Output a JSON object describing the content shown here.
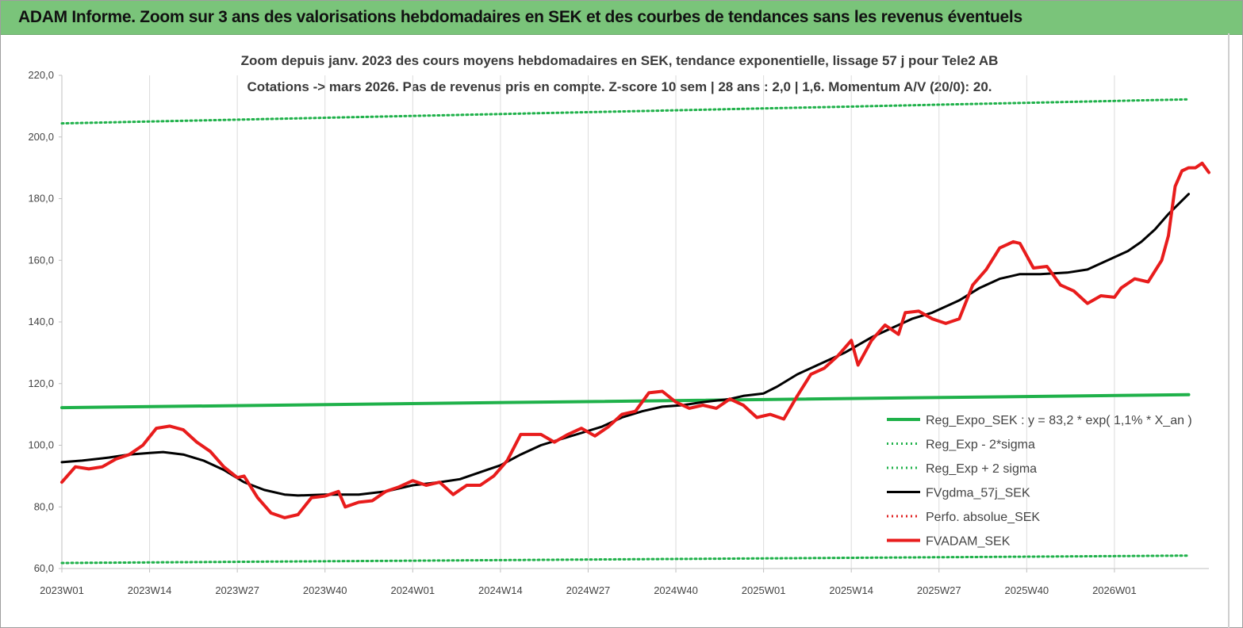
{
  "banner": {
    "title": "ADAM Informe. Zoom sur 3 ans des valorisations hebdomadaires en SEK et des courbes de tendances sans les revenus éventuels",
    "color": "#7ac47a"
  },
  "chart_data": {
    "type": "line",
    "title": "Zoom depuis janv. 2023 des cours moyens hebdomadaires en SEK, tendance exponentielle, lissage 57 j pour Tele2 AB",
    "subtitle": "Cotations -> mars 2026. Pas de revenus pris en compte. Z-score 10 sem  | 28 ans : 2,0  | 1,6. Momentum A/V (20/0): 20.",
    "ylim": [
      60,
      220
    ],
    "y_ticks": [
      "60,0",
      "80,0",
      "100,0",
      "120,0",
      "140,0",
      "160,0",
      "180,0",
      "200,0",
      "220,0"
    ],
    "x_ticks": [
      "2023W01",
      "2023W14",
      "2023W27",
      "2023W40",
      "2024W01",
      "2024W14",
      "2024W27",
      "2024W40",
      "2025W01",
      "2025W14",
      "2025W27",
      "2025W40",
      "2026W01"
    ],
    "grid": "vertical",
    "legend_position": "right",
    "series": [
      {
        "name": "Reg_Expo_SEK : y = 83,2 * exp( 1,1% *  X_an )",
        "color": "#1fb14a",
        "style": "solid-thick",
        "points": [
          [
            "2023W01",
            112.2
          ],
          [
            "2026W12",
            116.4
          ]
        ]
      },
      {
        "name": "Reg_Exp - 2*sigma",
        "color": "#1fb14a",
        "style": "dotted",
        "points": [
          [
            "2023W01",
            61.8
          ],
          [
            "2026W12",
            64.2
          ]
        ]
      },
      {
        "name": "Reg_Exp + 2 sigma",
        "color": "#1fb14a",
        "style": "dotted",
        "points": [
          [
            "2023W01",
            204.4
          ],
          [
            "2026W12",
            212.2
          ]
        ]
      },
      {
        "name": "FVgdma_57j_SEK",
        "color": "#000000",
        "style": "solid",
        "points": [
          [
            "2023W01",
            94.5
          ],
          [
            "2023W04",
            95
          ],
          [
            "2023W08",
            96
          ],
          [
            "2023W11",
            97
          ],
          [
            "2023W14",
            97.5
          ],
          [
            "2023W16",
            97.8
          ],
          [
            "2023W19",
            97
          ],
          [
            "2023W22",
            95
          ],
          [
            "2023W25",
            92
          ],
          [
            "2023W28",
            88
          ],
          [
            "2023W31",
            85.5
          ],
          [
            "2023W34",
            84
          ],
          [
            "2023W36",
            83.7
          ],
          [
            "2023W40",
            84
          ],
          [
            "2023W45",
            84
          ],
          [
            "2023W49",
            85
          ],
          [
            "2024W01",
            87
          ],
          [
            "2024W05",
            88
          ],
          [
            "2024W08",
            89
          ],
          [
            "2024W12",
            92
          ],
          [
            "2024W14",
            93.5
          ],
          [
            "2024W17",
            97
          ],
          [
            "2024W20",
            100
          ],
          [
            "2024W23",
            102
          ],
          [
            "2024W26",
            104
          ],
          [
            "2024W29",
            106
          ],
          [
            "2024W32",
            109
          ],
          [
            "2024W35",
            111
          ],
          [
            "2024W38",
            112.5
          ],
          [
            "2024W41",
            113
          ],
          [
            "2024W44",
            114
          ],
          [
            "2024W48",
            115
          ],
          [
            "2024W50",
            116
          ],
          [
            "2025W01",
            116.8
          ],
          [
            "2025W03",
            119
          ],
          [
            "2025W06",
            123
          ],
          [
            "2025W09",
            126
          ],
          [
            "2025W13",
            130
          ],
          [
            "2025W17",
            135
          ],
          [
            "2025W20",
            138
          ],
          [
            "2025W23",
            141
          ],
          [
            "2025W26",
            143
          ],
          [
            "2025W30",
            147
          ],
          [
            "2025W33",
            151
          ],
          [
            "2025W36",
            154
          ],
          [
            "2025W39",
            155.5
          ],
          [
            "2025W42",
            155.5
          ],
          [
            "2025W46",
            156
          ],
          [
            "2025W49",
            157
          ],
          [
            "2025W52",
            160
          ],
          [
            "2026W01",
            161
          ],
          [
            "2026W03",
            163
          ],
          [
            "2026W05",
            166
          ],
          [
            "2026W07",
            170
          ],
          [
            "2026W09",
            175
          ],
          [
            "2026W12",
            181.5
          ]
        ]
      },
      {
        "name": "Perfo. absolue_SEK",
        "color": "#e02020",
        "style": "dotted",
        "points": []
      },
      {
        "name": "FVADAM_SEK",
        "color": "#e81c1c",
        "style": "solid-thick",
        "points": [
          [
            "2023W01",
            88
          ],
          [
            "2023W03",
            93
          ],
          [
            "2023W05",
            92.3
          ],
          [
            "2023W07",
            93
          ],
          [
            "2023W09",
            95.5
          ],
          [
            "2023W11",
            97
          ],
          [
            "2023W13",
            100
          ],
          [
            "2023W15",
            105.5
          ],
          [
            "2023W17",
            106.2
          ],
          [
            "2023W19",
            105
          ],
          [
            "2023W21",
            101
          ],
          [
            "2023W23",
            98
          ],
          [
            "2023W25",
            93
          ],
          [
            "2023W27",
            89.5
          ],
          [
            "2023W28",
            90
          ],
          [
            "2023W30",
            83
          ],
          [
            "2023W32",
            78
          ],
          [
            "2023W34",
            76.5
          ],
          [
            "2023W36",
            77.5
          ],
          [
            "2023W38",
            83
          ],
          [
            "2023W40",
            83.5
          ],
          [
            "2023W42",
            85
          ],
          [
            "2023W43",
            80
          ],
          [
            "2023W45",
            81.5
          ],
          [
            "2023W47",
            82
          ],
          [
            "2023W49",
            85
          ],
          [
            "2023W51",
            86.5
          ],
          [
            "2024W01",
            88.5
          ],
          [
            "2024W03",
            87
          ],
          [
            "2024W05",
            88
          ],
          [
            "2024W07",
            84
          ],
          [
            "2024W09",
            87
          ],
          [
            "2024W11",
            87
          ],
          [
            "2024W13",
            90
          ],
          [
            "2024W15",
            95
          ],
          [
            "2024W17",
            103.5
          ],
          [
            "2024W20",
            103.5
          ],
          [
            "2024W22",
            101
          ],
          [
            "2024W24",
            103.5
          ],
          [
            "2024W26",
            105.5
          ],
          [
            "2024W28",
            103
          ],
          [
            "2024W30",
            106
          ],
          [
            "2024W32",
            110
          ],
          [
            "2024W34",
            111
          ],
          [
            "2024W36",
            117
          ],
          [
            "2024W38",
            117.5
          ],
          [
            "2024W40",
            114
          ],
          [
            "2024W42",
            112
          ],
          [
            "2024W44",
            113
          ],
          [
            "2024W46",
            112
          ],
          [
            "2024W48",
            115
          ],
          [
            "2024W50",
            113
          ],
          [
            "2024W52",
            109
          ],
          [
            "2025W02",
            110
          ],
          [
            "2025W04",
            108.5
          ],
          [
            "2025W06",
            116
          ],
          [
            "2025W08",
            123
          ],
          [
            "2025W10",
            125
          ],
          [
            "2025W12",
            129
          ],
          [
            "2025W14",
            134
          ],
          [
            "2025W15",
            126
          ],
          [
            "2025W17",
            134
          ],
          [
            "2025W19",
            139
          ],
          [
            "2025W21",
            136
          ],
          [
            "2025W22",
            143
          ],
          [
            "2025W24",
            143.5
          ],
          [
            "2025W26",
            141
          ],
          [
            "2025W28",
            139.5
          ],
          [
            "2025W30",
            141
          ],
          [
            "2025W32",
            152
          ],
          [
            "2025W34",
            157
          ],
          [
            "2025W36",
            164
          ],
          [
            "2025W38",
            166
          ],
          [
            "2025W39",
            165.5
          ],
          [
            "2025W41",
            157.5
          ],
          [
            "2025W43",
            158
          ],
          [
            "2025W45",
            152
          ],
          [
            "2025W47",
            150
          ],
          [
            "2025W49",
            146
          ],
          [
            "2025W51",
            148.5
          ],
          [
            "2026W01",
            148
          ],
          [
            "2026W02",
            151
          ],
          [
            "2026W04",
            154
          ],
          [
            "2026W06",
            153
          ],
          [
            "2026W08",
            160
          ],
          [
            "2026W09",
            168
          ],
          [
            "2026W10",
            184
          ],
          [
            "2026W11",
            189
          ],
          [
            "2026W12",
            190
          ],
          [
            "2026W13",
            190
          ],
          [
            "2026W14",
            191.5
          ],
          [
            "2026W15",
            188.5
          ]
        ]
      }
    ]
  }
}
